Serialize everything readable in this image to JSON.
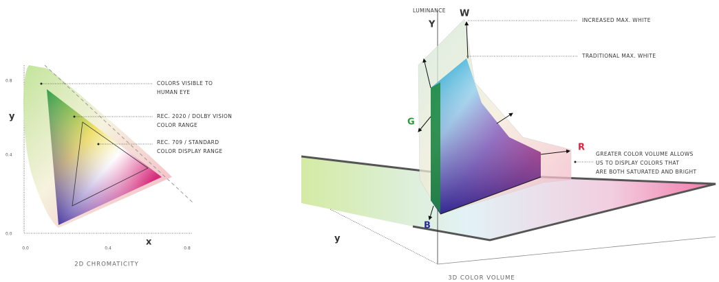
{
  "left": {
    "axis_y": "y",
    "axis_x": "x",
    "yticks": [
      "0.8",
      "0.4",
      "0.0"
    ],
    "xticks": [
      "0.0",
      "0.4",
      "0.8"
    ],
    "annotations": [
      [
        "COLORS VISIBLE TO",
        "HUMAN EYE"
      ],
      [
        "REC. 2020 / DOLBY VISION",
        "COLOR RANGE"
      ],
      [
        "REC. 709 / STANDARD",
        "COLOR DISPLAY RANGE"
      ]
    ],
    "caption": "2D CHROMATICITY"
  },
  "right": {
    "luminance": "LUMINANCE",
    "axis_Y": "Y",
    "white": "W",
    "increased_white": "INCREASED MAX. WHITE",
    "traditional_white": "TRADITIONAL MAX. WHITE",
    "green": "G",
    "red": "R",
    "blue": "B",
    "axis_y": "y",
    "annotation": [
      "GREATER COLOR VOLUME ALLOWS",
      "US TO DISPLAY COLORS THAT",
      "ARE BOTH SATURATED AND BRIGHT"
    ],
    "caption": "3D COLOR VOLUME"
  }
}
